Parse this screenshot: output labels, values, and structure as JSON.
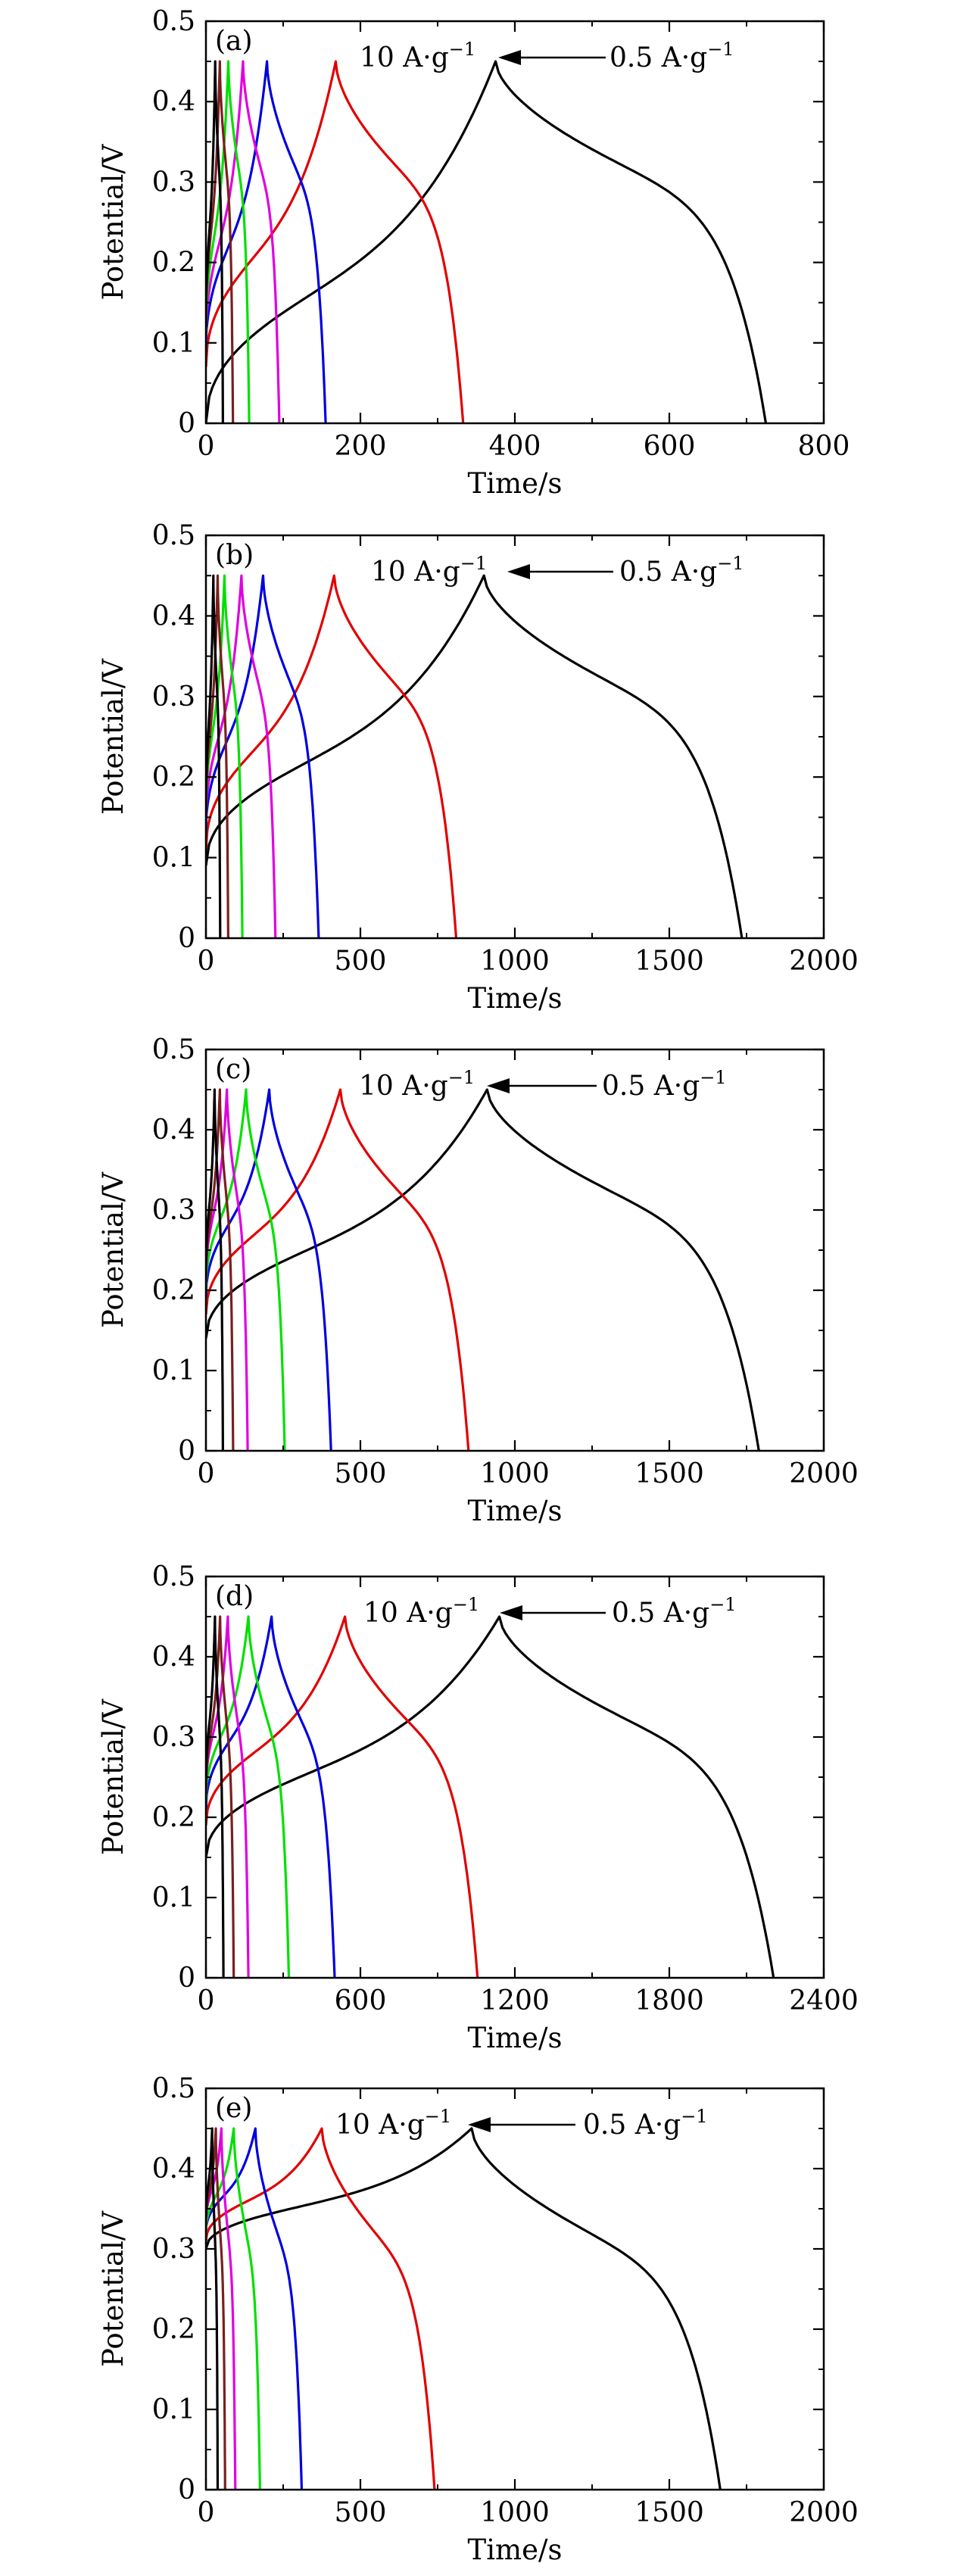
{
  "chart_data": [
    {
      "type": "line",
      "panel_label": "(a)",
      "xlabel": "Time/s",
      "ylabel": "Potential/V",
      "xlim": [
        0,
        800
      ],
      "ylim": [
        0,
        0.5
      ],
      "xticks": [
        0,
        200,
        400,
        600,
        800
      ],
      "yticks": [
        0,
        0.1,
        0.2,
        0.3,
        0.4,
        0.5
      ],
      "xtick_labels": [
        "0",
        "200",
        "400",
        "600",
        "800"
      ],
      "ytick_labels": [
        "0",
        "0.1",
        "0.2",
        "0.3",
        "0.4",
        "0.5"
      ],
      "annotations": [
        {
          "text": "10 A·g",
          "sup": "−1"
        },
        {
          "text": "0.5 A·g",
          "sup": "−1"
        }
      ],
      "series": [
        {
          "color": "#000000",
          "v0": 0.0,
          "peak_t": 375,
          "end_t": 725,
          "vmax": 0.45
        },
        {
          "color": "#e00000",
          "v0": 0.07,
          "peak_t": 168,
          "end_t": 333,
          "vmax": 0.45
        },
        {
          "color": "#0000e0",
          "v0": 0.09,
          "peak_t": 79,
          "end_t": 155,
          "vmax": 0.45
        },
        {
          "color": "#e000e0",
          "v0": 0.1,
          "peak_t": 48,
          "end_t": 95,
          "vmax": 0.45
        },
        {
          "color": "#00e000",
          "v0": 0.11,
          "peak_t": 29,
          "end_t": 56,
          "vmax": 0.45
        },
        {
          "color": "#7a1f1f",
          "v0": 0.12,
          "peak_t": 18,
          "end_t": 35,
          "vmax": 0.45
        },
        {
          "color": "#000000",
          "v0": 0.12,
          "peak_t": 12,
          "end_t": 22,
          "vmax": 0.45
        }
      ]
    },
    {
      "type": "line",
      "panel_label": "(b)",
      "xlabel": "Time/s",
      "ylabel": "Potential/V",
      "xlim": [
        0,
        2000
      ],
      "ylim": [
        0,
        0.5
      ],
      "xticks": [
        0,
        500,
        1000,
        1500,
        2000
      ],
      "yticks": [
        0,
        0.1,
        0.2,
        0.3,
        0.4,
        0.5
      ],
      "xtick_labels": [
        "0",
        "500",
        "1000",
        "1500",
        "2000"
      ],
      "ytick_labels": [
        "0",
        "0.1",
        "0.2",
        "0.3",
        "0.4",
        "0.5"
      ],
      "annotations": [
        {
          "text": "10 A·g",
          "sup": "−1"
        },
        {
          "text": "0.5 A·g",
          "sup": "−1"
        }
      ],
      "series": [
        {
          "color": "#000000",
          "v0": 0.09,
          "peak_t": 900,
          "end_t": 1735,
          "vmax": 0.45
        },
        {
          "color": "#e00000",
          "v0": 0.11,
          "peak_t": 415,
          "end_t": 810,
          "vmax": 0.45
        },
        {
          "color": "#0000e0",
          "v0": 0.13,
          "peak_t": 185,
          "end_t": 365,
          "vmax": 0.45
        },
        {
          "color": "#e000e0",
          "v0": 0.14,
          "peak_t": 115,
          "end_t": 225,
          "vmax": 0.45
        },
        {
          "color": "#00e000",
          "v0": 0.15,
          "peak_t": 60,
          "end_t": 118,
          "vmax": 0.45
        },
        {
          "color": "#7a1f1f",
          "v0": 0.15,
          "peak_t": 38,
          "end_t": 72,
          "vmax": 0.45
        },
        {
          "color": "#000000",
          "v0": 0.16,
          "peak_t": 24,
          "end_t": 46,
          "vmax": 0.45
        }
      ]
    },
    {
      "type": "line",
      "panel_label": "(c)",
      "xlabel": "Time/s",
      "ylabel": "Potential/V",
      "xlim": [
        0,
        2000
      ],
      "ylim": [
        0,
        0.5
      ],
      "xticks": [
        0,
        500,
        1000,
        1500,
        2000
      ],
      "yticks": [
        0,
        0.1,
        0.2,
        0.3,
        0.4,
        0.5
      ],
      "xtick_labels": [
        "0",
        "500",
        "1000",
        "1500",
        "2000"
      ],
      "ytick_labels": [
        "0",
        "0.1",
        "0.2",
        "0.3",
        "0.4",
        "0.5"
      ],
      "annotations": [
        {
          "text": "10 A·g",
          "sup": "−1"
        },
        {
          "text": "0.5 A·g",
          "sup": "−1"
        }
      ],
      "series": [
        {
          "color": "#000000",
          "v0": 0.14,
          "peak_t": 910,
          "end_t": 1790,
          "vmax": 0.45
        },
        {
          "color": "#e00000",
          "v0": 0.17,
          "peak_t": 435,
          "end_t": 850,
          "vmax": 0.45
        },
        {
          "color": "#0000e0",
          "v0": 0.19,
          "peak_t": 205,
          "end_t": 405,
          "vmax": 0.45
        },
        {
          "color": "#00e000",
          "v0": 0.2,
          "peak_t": 130,
          "end_t": 255,
          "vmax": 0.45
        },
        {
          "color": "#e000e0",
          "v0": 0.21,
          "peak_t": 68,
          "end_t": 135,
          "vmax": 0.45
        },
        {
          "color": "#7a1f1f",
          "v0": 0.21,
          "peak_t": 45,
          "end_t": 88,
          "vmax": 0.45
        },
        {
          "color": "#000000",
          "v0": 0.22,
          "peak_t": 28,
          "end_t": 55,
          "vmax": 0.45
        }
      ]
    },
    {
      "type": "line",
      "panel_label": "(d)",
      "xlabel": "Time/s",
      "ylabel": "Potential/V",
      "xlim": [
        0,
        2400
      ],
      "ylim": [
        0,
        0.5
      ],
      "xticks": [
        0,
        600,
        1200,
        1800,
        2400
      ],
      "yticks": [
        0,
        0.1,
        0.2,
        0.3,
        0.4,
        0.5
      ],
      "xtick_labels": [
        "0",
        "600",
        "1200",
        "1800",
        "2400"
      ],
      "ytick_labels": [
        "0",
        "0.1",
        "0.2",
        "0.3",
        "0.4",
        "0.5"
      ],
      "annotations": [
        {
          "text": "10 A·g",
          "sup": "−1"
        },
        {
          "text": "0.5 A·g",
          "sup": "−1"
        }
      ],
      "series": [
        {
          "color": "#000000",
          "v0": 0.15,
          "peak_t": 1140,
          "end_t": 2205,
          "vmax": 0.45
        },
        {
          "color": "#e00000",
          "v0": 0.19,
          "peak_t": 540,
          "end_t": 1055,
          "vmax": 0.45
        },
        {
          "color": "#0000e0",
          "v0": 0.21,
          "peak_t": 255,
          "end_t": 500,
          "vmax": 0.45
        },
        {
          "color": "#00e000",
          "v0": 0.22,
          "peak_t": 165,
          "end_t": 322,
          "vmax": 0.45
        },
        {
          "color": "#e000e0",
          "v0": 0.23,
          "peak_t": 85,
          "end_t": 165,
          "vmax": 0.45
        },
        {
          "color": "#7a1f1f",
          "v0": 0.23,
          "peak_t": 55,
          "end_t": 108,
          "vmax": 0.45
        },
        {
          "color": "#000000",
          "v0": 0.24,
          "peak_t": 35,
          "end_t": 68,
          "vmax": 0.45
        }
      ]
    },
    {
      "type": "line",
      "panel_label": "(e)",
      "xlabel": "Time/s",
      "ylabel": "Potential/V",
      "xlim": [
        0,
        2000
      ],
      "ylim": [
        0,
        0.5
      ],
      "xticks": [
        0,
        500,
        1000,
        1500,
        2000
      ],
      "yticks": [
        0,
        0.1,
        0.2,
        0.3,
        0.4,
        0.5
      ],
      "xtick_labels": [
        "0",
        "500",
        "1000",
        "1500",
        "2000"
      ],
      "ytick_labels": [
        "0",
        "0.1",
        "0.2",
        "0.3",
        "0.4",
        "0.5"
      ],
      "annotations": [
        {
          "text": "10 A·g",
          "sup": "−1"
        },
        {
          "text": "0.5 A·g",
          "sup": "−1"
        }
      ],
      "series": [
        {
          "color": "#000000",
          "v0": 0.3,
          "peak_t": 860,
          "end_t": 1665,
          "vmax": 0.45
        },
        {
          "color": "#e00000",
          "v0": 0.31,
          "peak_t": 375,
          "end_t": 740,
          "vmax": 0.45
        },
        {
          "color": "#0000e0",
          "v0": 0.32,
          "peak_t": 160,
          "end_t": 310,
          "vmax": 0.45
        },
        {
          "color": "#00e000",
          "v0": 0.32,
          "peak_t": 90,
          "end_t": 175,
          "vmax": 0.45
        },
        {
          "color": "#e000e0",
          "v0": 0.33,
          "peak_t": 50,
          "end_t": 95,
          "vmax": 0.45
        },
        {
          "color": "#7a1f1f",
          "v0": 0.33,
          "peak_t": 32,
          "end_t": 62,
          "vmax": 0.45
        },
        {
          "color": "#000000",
          "v0": 0.34,
          "peak_t": 20,
          "end_t": 38,
          "vmax": 0.45
        }
      ]
    }
  ]
}
